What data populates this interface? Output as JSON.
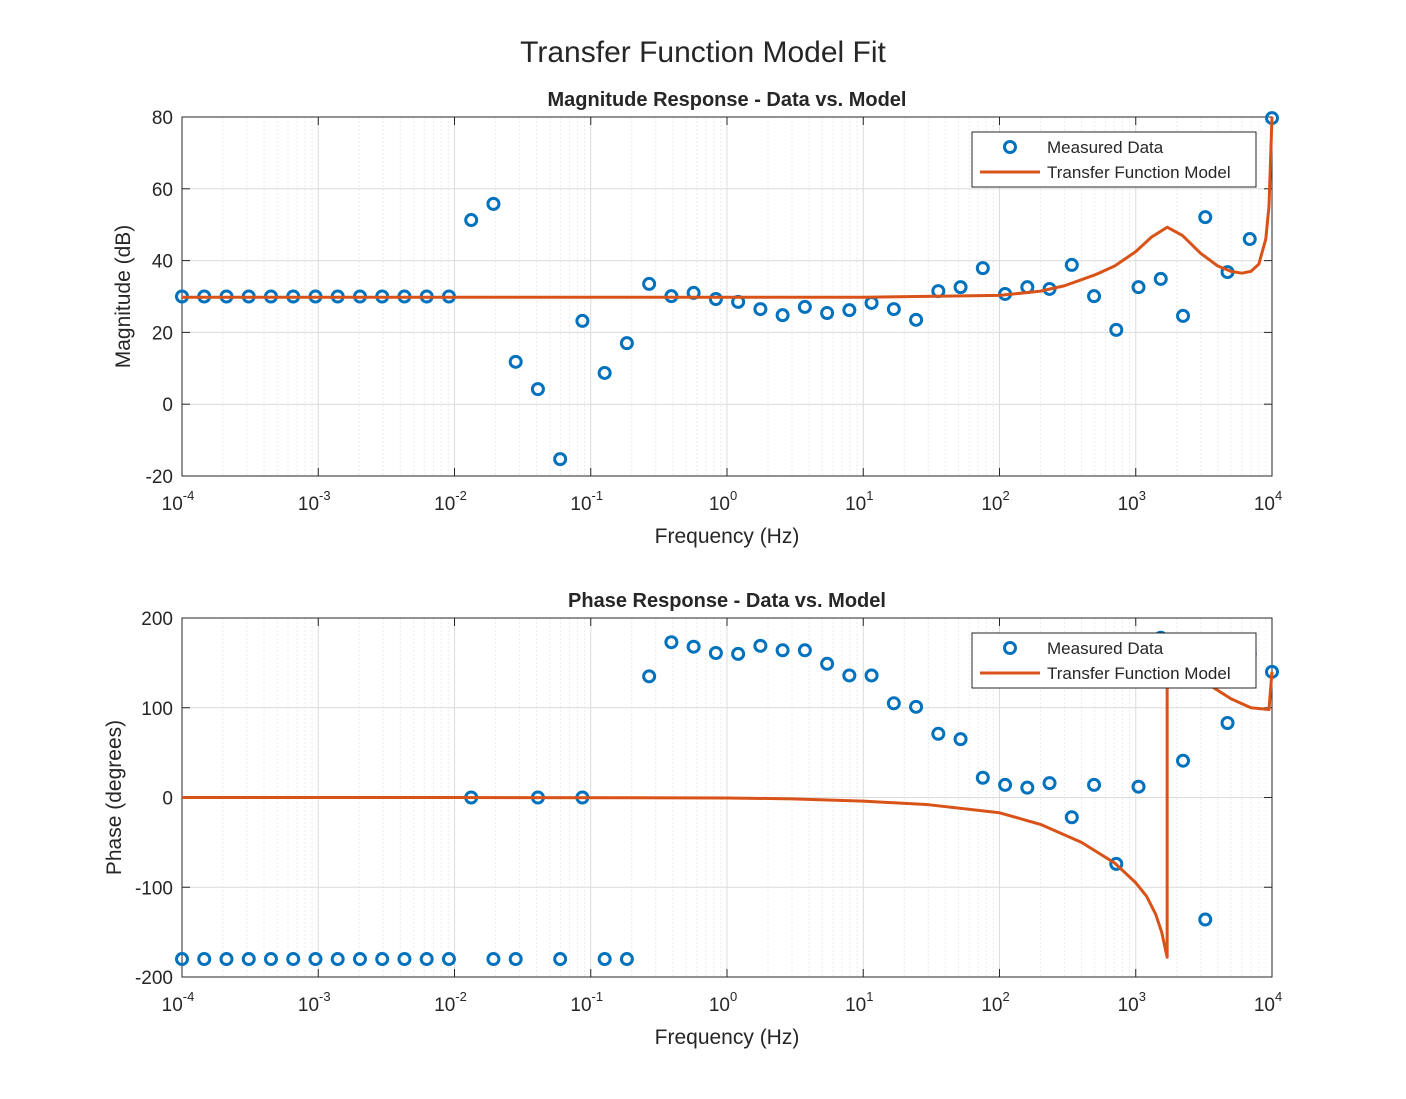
{
  "title": "Transfer Function Model Fit",
  "chart_data": [
    {
      "type": "combo",
      "title": "Magnitude Response - Data vs. Model",
      "x_label": "Frequency (Hz)",
      "y_label": "Magnitude (dB)",
      "x_scale": "log",
      "xlim": [
        0.0001,
        10000
      ],
      "xticks": [
        {
          "value": 0.0001,
          "label": "10",
          "exponent": "-4"
        },
        {
          "value": 0.001,
          "label": "10",
          "exponent": "-3"
        },
        {
          "value": 0.01,
          "label": "10",
          "exponent": "-2"
        },
        {
          "value": 0.1,
          "label": "10",
          "exponent": "-1"
        },
        {
          "value": 1,
          "label": "10",
          "exponent": "0"
        },
        {
          "value": 10,
          "label": "10",
          "exponent": "1"
        },
        {
          "value": 100,
          "label": "10",
          "exponent": "2"
        },
        {
          "value": 1000,
          "label": "10",
          "exponent": "3"
        },
        {
          "value": 10000,
          "label": "10",
          "exponent": "4"
        }
      ],
      "ylim": [
        -20,
        80
      ],
      "yticks": [
        -20,
        0,
        20,
        40,
        60,
        80
      ],
      "grid": true,
      "minor_grid": true,
      "legend": "northeast",
      "series": [
        {
          "name": "Measured Data",
          "color": "#0072bd",
          "style": "markers",
          "x": [
            0.0001,
            0.0001456,
            0.0002121,
            0.0003089,
            0.0004498,
            0.0006551,
            0.0009541,
            0.001389,
            0.002024,
            0.002947,
            0.004292,
            0.006251,
            0.009103,
            0.01326,
            0.01931,
            0.02812,
            0.04095,
            0.05964,
            0.08685,
            0.1265,
            0.1842,
            0.2683,
            0.3907,
            0.569,
            0.8286,
            1.207,
            1.758,
            2.56,
            3.728,
            5.429,
            7.906,
            11.51,
            16.77,
            24.42,
            35.56,
            51.79,
            75.43,
            109.9,
            160,
            233,
            339.3,
            494.2,
            719.7,
            1048,
            1526,
            2223,
            3237,
            4715,
            6866,
            10000
          ],
          "values": [
            30,
            30,
            30,
            30,
            30,
            30,
            30,
            30,
            30,
            30,
            30,
            30,
            30,
            51.3,
            55.8,
            11.8,
            4.2,
            -15.3,
            23.2,
            8.7,
            17,
            33.5,
            30.1,
            31,
            29.3,
            28.5,
            26.5,
            24.8,
            27.1,
            25.4,
            26.2,
            28.2,
            26.5,
            23.5,
            31.5,
            32.6,
            37.9,
            30.7,
            32.6,
            32.1,
            38.8,
            30.1,
            20.7,
            32.6,
            34.9,
            24.6,
            52.1,
            36.8,
            46,
            79.7
          ]
        },
        {
          "name": "Transfer Function Model",
          "color": "#d95319",
          "style": "line",
          "x": [
            0.0001,
            0.01,
            1,
            10,
            100,
            200,
            300,
            500,
            700,
            1000,
            1300,
            1700,
            2200,
            3000,
            4000,
            5000,
            6000,
            7000,
            8000,
            9000,
            9500,
            10000
          ],
          "values": [
            29.8,
            29.8,
            29.8,
            29.8,
            30.3,
            31.5,
            33,
            36,
            38.5,
            42.5,
            46.5,
            49.3,
            47,
            42,
            38.5,
            37,
            36.5,
            37,
            39,
            46,
            55,
            80
          ]
        }
      ]
    },
    {
      "type": "combo",
      "title": "Phase Response - Data vs. Model",
      "x_label": "Frequency (Hz)",
      "y_label": "Phase (degrees)",
      "x_scale": "log",
      "xlim": [
        0.0001,
        10000
      ],
      "xticks": [
        {
          "value": 0.0001,
          "label": "10",
          "exponent": "-4"
        },
        {
          "value": 0.001,
          "label": "10",
          "exponent": "-3"
        },
        {
          "value": 0.01,
          "label": "10",
          "exponent": "-2"
        },
        {
          "value": 0.1,
          "label": "10",
          "exponent": "-1"
        },
        {
          "value": 1,
          "label": "10",
          "exponent": "0"
        },
        {
          "value": 10,
          "label": "10",
          "exponent": "1"
        },
        {
          "value": 100,
          "label": "10",
          "exponent": "2"
        },
        {
          "value": 1000,
          "label": "10",
          "exponent": "3"
        },
        {
          "value": 10000,
          "label": "10",
          "exponent": "4"
        }
      ],
      "ylim": [
        -200,
        200
      ],
      "yticks": [
        -200,
        -100,
        0,
        100,
        200
      ],
      "grid": true,
      "minor_grid": true,
      "legend": "northeast",
      "series": [
        {
          "name": "Measured Data",
          "color": "#0072bd",
          "style": "markers",
          "x": [
            0.0001,
            0.0001456,
            0.0002121,
            0.0003089,
            0.0004498,
            0.0006551,
            0.0009541,
            0.001389,
            0.002024,
            0.002947,
            0.004292,
            0.006251,
            0.009103,
            0.01326,
            0.01931,
            0.02812,
            0.04095,
            0.05964,
            0.08685,
            0.1265,
            0.1842,
            0.2683,
            0.3907,
            0.569,
            0.8286,
            1.207,
            1.758,
            2.56,
            3.728,
            5.429,
            7.906,
            11.51,
            16.77,
            24.42,
            35.56,
            51.79,
            75.43,
            109.9,
            160,
            233,
            339.3,
            494.2,
            719.7,
            1048,
            1526,
            2223,
            3237,
            4715,
            6866,
            10000
          ],
          "values": [
            -180,
            -180,
            -180,
            -180,
            -180,
            -180,
            -180,
            -180,
            -180,
            -180,
            -180,
            -180,
            -180,
            0,
            -180,
            -180,
            0,
            -180,
            0,
            -180,
            -180,
            135,
            173,
            168,
            161,
            160,
            169,
            164,
            164,
            149,
            136,
            136,
            105,
            101,
            71,
            65,
            22,
            14,
            11,
            16,
            -22,
            14,
            -74,
            12,
            178,
            41,
            -136,
            83,
            160,
            140
          ]
        },
        {
          "name": "Transfer Function Model",
          "color": "#d95319",
          "style": "line",
          "x": [
            0.0001,
            0.01,
            1,
            3,
            10,
            30,
            100,
            200,
            400,
            700,
            1000,
            1200,
            1400,
            1550,
            1700,
            1700,
            2000,
            2500,
            3500,
            5000,
            7000,
            9500,
            10000
          ],
          "values": [
            0,
            0,
            -0.5,
            -1.5,
            -4,
            -8,
            -17,
            -30,
            -50,
            -73,
            -95,
            -110,
            -130,
            -150,
            -178,
            180,
            165,
            148,
            125,
            110,
            100,
            98,
            140
          ]
        }
      ]
    }
  ]
}
